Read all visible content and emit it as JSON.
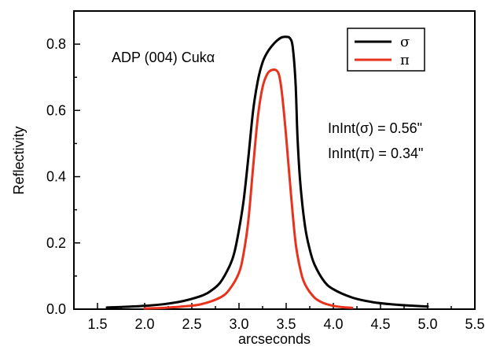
{
  "chart_data": {
    "type": "line",
    "xlabel": "arcseconds",
    "ylabel": "Reflectivity",
    "xlim": [
      1.25,
      5.5
    ],
    "ylim": [
      0.0,
      0.9
    ],
    "x_ticks": [
      "1.5",
      "2.0",
      "2.5",
      "3.0",
      "3.5",
      "4.0",
      "4.5",
      "5.0",
      "5.5"
    ],
    "y_ticks": [
      "0.0",
      "0.2",
      "0.4",
      "0.6",
      "0.8"
    ],
    "grid": false,
    "legend_position": "top-right",
    "annotations": {
      "title_text": "ADP (004) Cukα",
      "intint_sigma": "InInt(σ) = 0.56\"",
      "intint_pi": "InInt(π) = 0.34\""
    },
    "series": [
      {
        "name": "σ",
        "color": "#000000",
        "x": [
          1.6,
          1.8,
          2.0,
          2.2,
          2.4,
          2.6,
          2.7,
          2.8,
          2.9,
          2.95,
          3.0,
          3.05,
          3.1,
          3.15,
          3.2,
          3.25,
          3.3,
          3.35,
          3.4,
          3.45,
          3.5,
          3.54,
          3.57,
          3.6,
          3.62,
          3.65,
          3.7,
          3.75,
          3.8,
          3.9,
          4.0,
          4.2,
          4.4,
          4.6,
          4.8,
          5.0
        ],
        "y": [
          0.005,
          0.007,
          0.01,
          0.015,
          0.024,
          0.04,
          0.055,
          0.08,
          0.13,
          0.17,
          0.24,
          0.33,
          0.46,
          0.6,
          0.69,
          0.745,
          0.775,
          0.795,
          0.81,
          0.82,
          0.822,
          0.818,
          0.79,
          0.68,
          0.52,
          0.38,
          0.25,
          0.18,
          0.135,
          0.085,
          0.06,
          0.035,
          0.022,
          0.015,
          0.011,
          0.008
        ]
      },
      {
        "name": "π",
        "color": "#e8321e",
        "x": [
          2.0,
          2.2,
          2.4,
          2.6,
          2.8,
          2.9,
          3.0,
          3.05,
          3.1,
          3.15,
          3.2,
          3.25,
          3.3,
          3.35,
          3.4,
          3.43,
          3.46,
          3.5,
          3.55,
          3.6,
          3.65,
          3.7,
          3.8,
          3.9,
          4.0,
          4.1,
          4.2
        ],
        "y": [
          0.002,
          0.004,
          0.008,
          0.015,
          0.035,
          0.06,
          0.11,
          0.17,
          0.27,
          0.43,
          0.58,
          0.67,
          0.71,
          0.722,
          0.72,
          0.7,
          0.64,
          0.52,
          0.35,
          0.2,
          0.12,
          0.075,
          0.035,
          0.018,
          0.01,
          0.006,
          0.004
        ]
      }
    ]
  }
}
